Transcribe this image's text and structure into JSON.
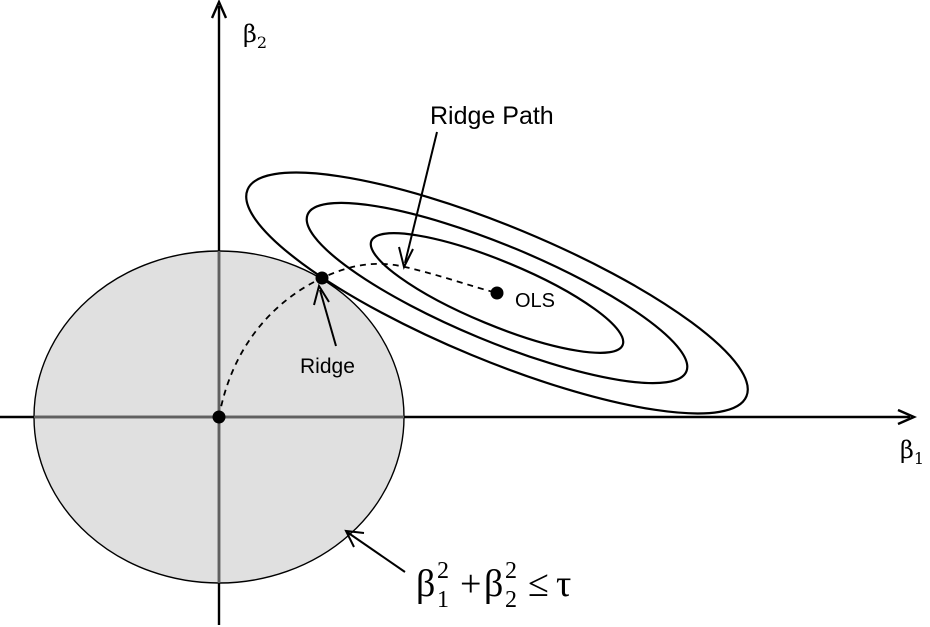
{
  "axes": {
    "x_symbol": "β",
    "x_subscript": "1",
    "y_symbol": "β",
    "y_subscript": "2"
  },
  "labels": {
    "ridge_path": "Ridge Path",
    "ols": "OLS",
    "ridge": "Ridge"
  },
  "constraint": {
    "b1": "β",
    "b1_sub": "1",
    "b1_sup": "2",
    "plus": "+",
    "b2": "β",
    "b2_sub": "2",
    "b2_sup": "2",
    "op": "≤",
    "tau": "τ"
  },
  "colors": {
    "constraint_fill": "#e0e0e0",
    "stroke": "#000000",
    "axis_inside_region": "#606060"
  }
}
